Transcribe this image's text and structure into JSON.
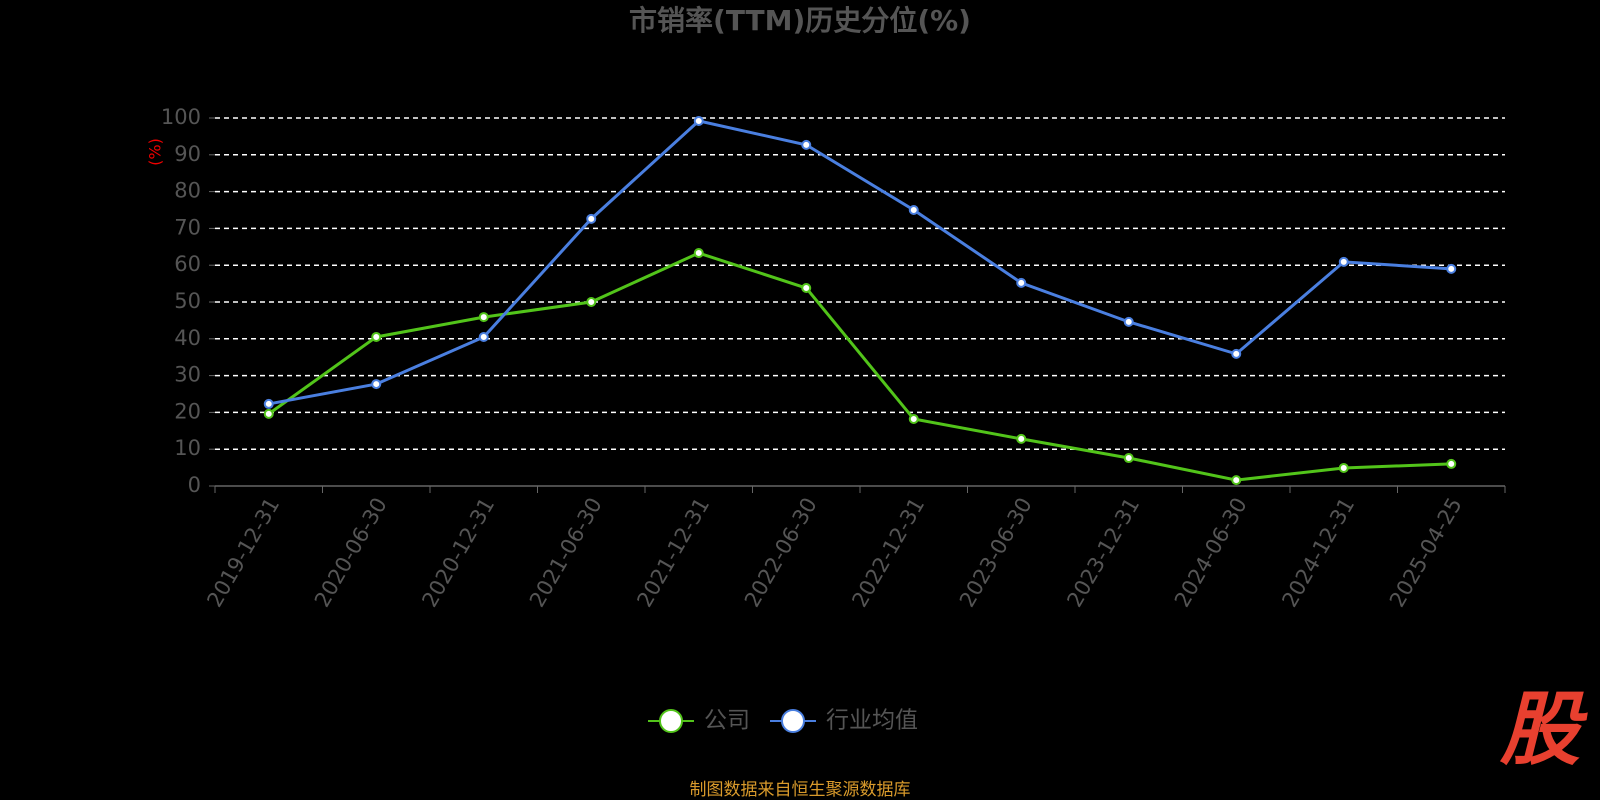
{
  "chart_data": {
    "type": "line",
    "title": "市销率(TTM)历史分位(%)",
    "y_label": "(%)",
    "categories": [
      "2019-12-31",
      "2020-06-30",
      "2020-12-31",
      "2021-06-30",
      "2021-12-31",
      "2022-06-30",
      "2022-12-31",
      "2023-06-30",
      "2023-12-31",
      "2024-06-30",
      "2024-12-31",
      "2025-04-25"
    ],
    "series": [
      {
        "name": "公司",
        "color": "#52c41a",
        "values": [
          19.6,
          40.5,
          45.9,
          50.0,
          63.3,
          53.8,
          18.2,
          12.8,
          7.6,
          1.6,
          4.9,
          6.0
        ]
      },
      {
        "name": "行业均值",
        "color": "#4a7fe0",
        "values": [
          22.3,
          27.7,
          40.5,
          72.6,
          99.2,
          92.7,
          75.0,
          55.2,
          44.6,
          35.9,
          60.9,
          59.0
        ]
      }
    ],
    "ylim": [
      0,
      100
    ],
    "yticks": [
      0,
      10,
      20,
      30,
      40,
      50,
      60,
      70,
      80,
      90,
      100
    ],
    "grid": true,
    "legend": "bottom",
    "source": "制图数据来自恒生聚源数据库",
    "watermark": "股"
  }
}
